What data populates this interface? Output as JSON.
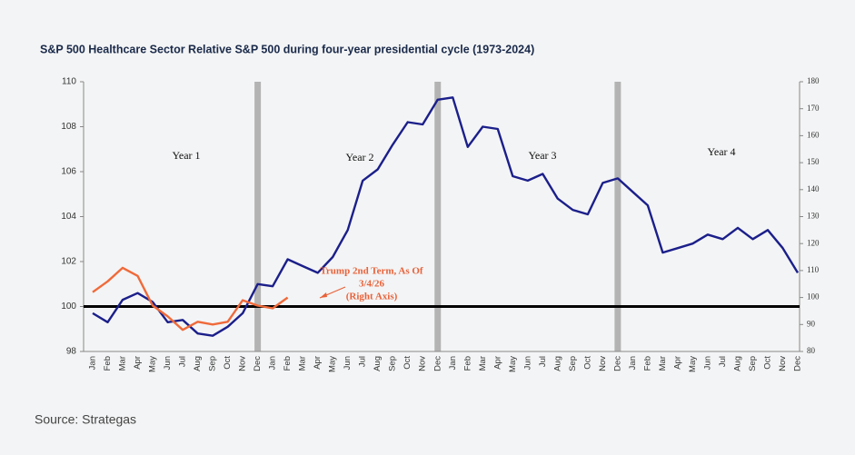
{
  "chart_data": {
    "type": "line",
    "title": "S&P 500 Healthcare Sector Relative S&P 500 during four-year presidential cycle (1973-2024)",
    "source": "Source: Strategas",
    "categories": [
      "Jan",
      "Feb",
      "Mar",
      "Apr",
      "May",
      "Jun",
      "Jul",
      "Aug",
      "Sep",
      "Oct",
      "Nov",
      "Dec",
      "Jan",
      "Feb",
      "Mar",
      "Apr",
      "May",
      "Jun",
      "Jul",
      "Aug",
      "Sep",
      "Oct",
      "Nov",
      "Dec",
      "Jan",
      "Feb",
      "Mar",
      "Apr",
      "May",
      "Jun",
      "Jul",
      "Aug",
      "Sep",
      "Oct",
      "Nov",
      "Dec",
      "Jan",
      "Feb",
      "Mar",
      "Apr",
      "May",
      "Jun",
      "Jul",
      "Aug",
      "Sep",
      "Oct",
      "Nov",
      "Dec"
    ],
    "series": [
      {
        "color": "#1b1f8a",
        "axis": "y",
        "values": [
          99.7,
          99.3,
          100.3,
          100.6,
          100.2,
          99.3,
          99.4,
          98.8,
          98.7,
          99.1,
          99.7,
          101.0,
          100.9,
          102.1,
          101.8,
          101.5,
          102.2,
          103.4,
          105.6,
          106.1,
          107.2,
          108.2,
          108.1,
          109.2,
          109.3,
          107.1,
          108.0,
          107.9,
          105.8,
          105.6,
          105.9,
          104.8,
          104.3,
          104.1,
          105.5,
          105.7,
          105.1,
          104.5,
          102.4,
          102.6,
          102.8,
          103.2,
          103.0,
          103.5,
          103.0,
          103.4,
          102.6,
          101.5
        ]
      },
      {
        "color": "#ef6a3a",
        "axis": "y2",
        "values": [
          102,
          106,
          111,
          108,
          97,
          93,
          88,
          91,
          90,
          91,
          99,
          97,
          96,
          100,
          null,
          null,
          null,
          null,
          null,
          null,
          null,
          null,
          null,
          null,
          null,
          null,
          null,
          null,
          null,
          null,
          null,
          null,
          null,
          null,
          null,
          null,
          null,
          null,
          null,
          null,
          null,
          null,
          null,
          null,
          null,
          null,
          null,
          null
        ]
      }
    ],
    "reference_line": 100,
    "year_labels": [
      "Year 1",
      "Year 2",
      "Year 3",
      "Year 4"
    ],
    "annotation": [
      "Trump 2nd Term, As Of",
      "3/4/26",
      "(Right Axis)"
    ],
    "ylim": [
      98,
      110
    ],
    "yticks": [
      98,
      100,
      102,
      104,
      106,
      108,
      110
    ],
    "y2lim": [
      80,
      180
    ],
    "y2ticks": [
      80,
      90,
      100,
      110,
      120,
      130,
      140,
      150,
      160,
      170,
      180
    ]
  }
}
